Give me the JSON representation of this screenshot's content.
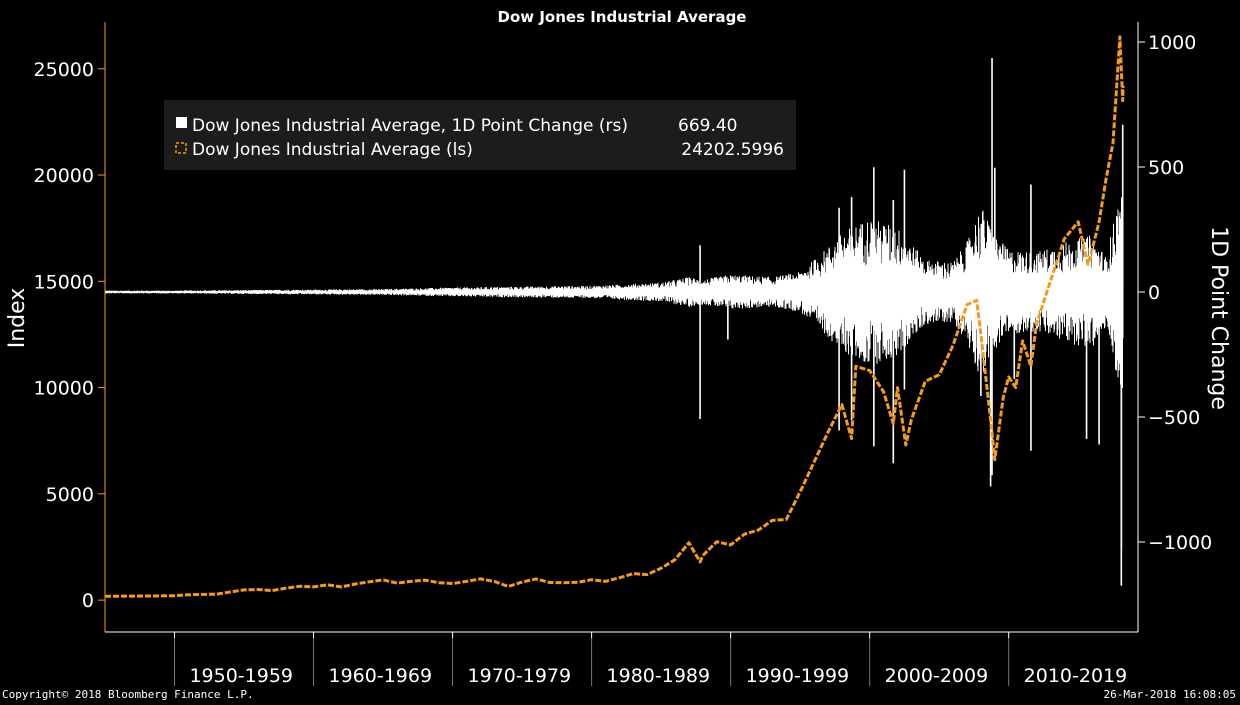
{
  "chart_data": {
    "type": "line",
    "title": "Dow Jones Industrial Average",
    "ylabel_left": "Index",
    "ylabel_right": "1D Point Change",
    "left_axis": {
      "min": -1500,
      "max": 27200,
      "ticks": [
        0,
        5000,
        10000,
        15000,
        20000,
        25000
      ]
    },
    "right_axis": {
      "min": -1360,
      "max": 1080,
      "ticks": [
        -1000,
        -500,
        0,
        500,
        1000
      ]
    },
    "x_range": [
      1945,
      2019.3
    ],
    "decades": [
      {
        "label": "1950-1959",
        "center": 1954.8
      },
      {
        "label": "1960-1969",
        "center": 1964.8
      },
      {
        "label": "1970-1979",
        "center": 1974.8
      },
      {
        "label": "1980-1989",
        "center": 1984.8
      },
      {
        "label": "1990-1999",
        "center": 1994.8
      },
      {
        "label": "2000-2009",
        "center": 2004.8
      },
      {
        "label": "2010-2019",
        "center": 2014.8
      }
    ],
    "decade_separators": [
      1950,
      1960,
      1970,
      1980,
      1990,
      2000,
      2010
    ],
    "legend": [
      {
        "label": "Dow Jones Industrial Average, 1D Point Change (rs)",
        "value": "669.40",
        "color": "#ffffff"
      },
      {
        "label": "Dow Jones Industrial Average (ls)",
        "value": "24202.5996",
        "color": "#f39b1e"
      }
    ],
    "series": [
      {
        "name": "Dow Jones Industrial Average (ls)",
        "axis": "left",
        "color": "#f39b1e",
        "points": [
          [
            1945.0,
            180
          ],
          [
            1947.0,
            190
          ],
          [
            1949.0,
            200
          ],
          [
            1950.0,
            210
          ],
          [
            1951.0,
            250
          ],
          [
            1952.0,
            270
          ],
          [
            1953.0,
            280
          ],
          [
            1954.0,
            380
          ],
          [
            1955.0,
            480
          ],
          [
            1956.0,
            500
          ],
          [
            1957.0,
            450
          ],
          [
            1958.0,
            560
          ],
          [
            1959.0,
            650
          ],
          [
            1960.0,
            620
          ],
          [
            1961.0,
            720
          ],
          [
            1962.0,
            620
          ],
          [
            1963.0,
            760
          ],
          [
            1964.0,
            860
          ],
          [
            1965.0,
            950
          ],
          [
            1966.0,
            800
          ],
          [
            1967.0,
            880
          ],
          [
            1968.0,
            940
          ],
          [
            1969.0,
            820
          ],
          [
            1970.0,
            780
          ],
          [
            1971.0,
            880
          ],
          [
            1972.0,
            1000
          ],
          [
            1973.0,
            880
          ],
          [
            1974.0,
            640
          ],
          [
            1975.0,
            850
          ],
          [
            1976.0,
            1000
          ],
          [
            1977.0,
            830
          ],
          [
            1978.0,
            820
          ],
          [
            1979.0,
            840
          ],
          [
            1980.0,
            960
          ],
          [
            1981.0,
            880
          ],
          [
            1982.0,
            1050
          ],
          [
            1983.0,
            1250
          ],
          [
            1984.0,
            1200
          ],
          [
            1985.0,
            1500
          ],
          [
            1986.0,
            1900
          ],
          [
            1987.0,
            2700
          ],
          [
            1987.8,
            1800
          ],
          [
            1988.0,
            2100
          ],
          [
            1989.0,
            2750
          ],
          [
            1990.0,
            2600
          ],
          [
            1991.0,
            3100
          ],
          [
            1992.0,
            3300
          ],
          [
            1993.0,
            3750
          ],
          [
            1994.0,
            3800
          ],
          [
            1995.0,
            5100
          ],
          [
            1996.0,
            6500
          ],
          [
            1997.0,
            7900
          ],
          [
            1998.0,
            9200
          ],
          [
            1998.7,
            7600
          ],
          [
            1999.0,
            11000
          ],
          [
            2000.0,
            10800
          ],
          [
            2001.0,
            9800
          ],
          [
            2001.7,
            8300
          ],
          [
            2002.0,
            10000
          ],
          [
            2002.6,
            7300
          ],
          [
            2003.0,
            8500
          ],
          [
            2004.0,
            10300
          ],
          [
            2005.0,
            10600
          ],
          [
            2006.0,
            12000
          ],
          [
            2007.0,
            13900
          ],
          [
            2007.7,
            14100
          ],
          [
            2008.0,
            12500
          ],
          [
            2008.7,
            8500
          ],
          [
            2009.0,
            6600
          ],
          [
            2009.6,
            9500
          ],
          [
            2010.0,
            10500
          ],
          [
            2010.5,
            10000
          ],
          [
            2011.0,
            12200
          ],
          [
            2011.6,
            11000
          ],
          [
            2012.0,
            13000
          ],
          [
            2013.0,
            15000
          ],
          [
            2014.0,
            17000
          ],
          [
            2015.0,
            17800
          ],
          [
            2015.7,
            15800
          ],
          [
            2016.0,
            16500
          ],
          [
            2016.5,
            17800
          ],
          [
            2017.0,
            19800
          ],
          [
            2017.5,
            21500
          ],
          [
            2018.0,
            26500
          ],
          [
            2018.2,
            23500
          ],
          [
            2018.23,
            24200
          ]
        ]
      },
      {
        "name": "Dow Jones Industrial Average, 1D Point Change (rs)",
        "axis": "right",
        "color": "#ffffff",
        "envelope": [
          [
            1945.0,
            6
          ],
          [
            1950.0,
            6
          ],
          [
            1955.0,
            8
          ],
          [
            1960.0,
            10
          ],
          [
            1965.0,
            12
          ],
          [
            1970.0,
            18
          ],
          [
            1975.0,
            22
          ],
          [
            1980.0,
            25
          ],
          [
            1985.0,
            38
          ],
          [
            1987.0,
            60
          ],
          [
            1988.0,
            50
          ],
          [
            1990.0,
            70
          ],
          [
            1993.0,
            60
          ],
          [
            1995.0,
            80
          ],
          [
            1997.0,
            180
          ],
          [
            1998.0,
            240
          ],
          [
            2000.0,
            300
          ],
          [
            2002.0,
            260
          ],
          [
            2004.0,
            130
          ],
          [
            2006.0,
            120
          ],
          [
            2007.0,
            200
          ],
          [
            2008.0,
            350
          ],
          [
            2009.0,
            230
          ],
          [
            2010.0,
            170
          ],
          [
            2012.0,
            160
          ],
          [
            2014.0,
            200
          ],
          [
            2016.0,
            230
          ],
          [
            2017.0,
            140
          ],
          [
            2018.0,
            400
          ],
          [
            2018.23,
            400
          ]
        ],
        "spikes": [
          [
            1987.8,
            -508
          ],
          [
            1987.8,
            187
          ],
          [
            1989.8,
            -190
          ],
          [
            1997.8,
            -554
          ],
          [
            1997.8,
            337
          ],
          [
            1998.7,
            -512
          ],
          [
            1998.7,
            380
          ],
          [
            2000.3,
            -617
          ],
          [
            2000.3,
            499
          ],
          [
            2001.7,
            -685
          ],
          [
            2001.7,
            368
          ],
          [
            2002.5,
            489
          ],
          [
            2002.5,
            -390
          ],
          [
            2008.0,
            -416
          ],
          [
            2008.7,
            -778
          ],
          [
            2008.8,
            936
          ],
          [
            2008.8,
            -733
          ],
          [
            2009.0,
            497
          ],
          [
            2010.4,
            -348
          ],
          [
            2011.6,
            -635
          ],
          [
            2011.6,
            430
          ],
          [
            2015.6,
            -588
          ],
          [
            2016.5,
            -610
          ],
          [
            2018.1,
            -1175
          ],
          [
            2018.1,
            -1032
          ],
          [
            2018.2,
            669
          ]
        ]
      }
    ]
  },
  "footer": {
    "copyright": "Copyright© 2018 Bloomberg Finance L.P.",
    "timestamp": "26-Mar-2018 16:08:05"
  }
}
